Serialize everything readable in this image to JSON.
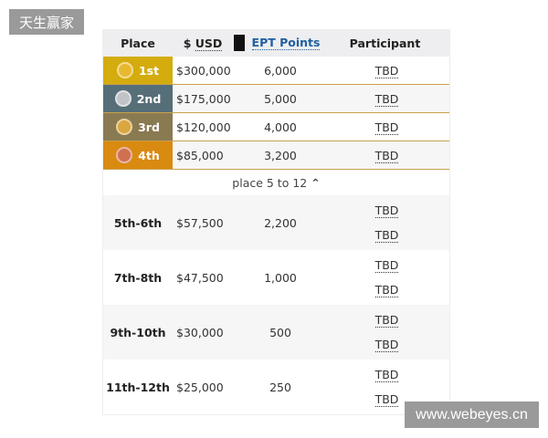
{
  "watermarks": {
    "top_left": "天生赢家",
    "bottom_right": "www.webeyes.cn"
  },
  "header": {
    "place": "Place",
    "usd_prefix": "$",
    "usd": "USD",
    "ept_icon": "book-icon",
    "ept": "EPT Points",
    "participant": "Participant"
  },
  "top_places": [
    {
      "place": "1st",
      "prize": "$300,000",
      "points": "6,000",
      "participant": "TBD",
      "color": "#d4ac0d",
      "medal": "#e8b830"
    },
    {
      "place": "2nd",
      "prize": "$175,000",
      "points": "5,000",
      "participant": "TBD",
      "color": "#566e78",
      "medal": "#c0c4c8"
    },
    {
      "place": "3rd",
      "prize": "$120,000",
      "points": "4,000",
      "participant": "TBD",
      "color": "#8a7a52",
      "medal": "#d9a640"
    },
    {
      "place": "4th",
      "prize": "$85,000",
      "points": "3,200",
      "participant": "TBD",
      "color": "#d98a10",
      "medal": "#d07050"
    }
  ],
  "toggle": {
    "label": "place 5 to 12",
    "icon": "chevron-up-icon"
  },
  "groups": [
    {
      "place": "5th-6th",
      "prize": "$57,500",
      "points": "2,200",
      "participants": [
        "TBD",
        "TBD"
      ]
    },
    {
      "place": "7th-8th",
      "prize": "$47,500",
      "points": "1,000",
      "participants": [
        "TBD",
        "TBD"
      ]
    },
    {
      "place": "9th-10th",
      "prize": "$30,000",
      "points": "500",
      "participants": [
        "TBD",
        "TBD"
      ]
    },
    {
      "place": "11th-12th",
      "prize": "$25,000",
      "points": "250",
      "participants": [
        "TBD",
        "TBD"
      ]
    }
  ]
}
